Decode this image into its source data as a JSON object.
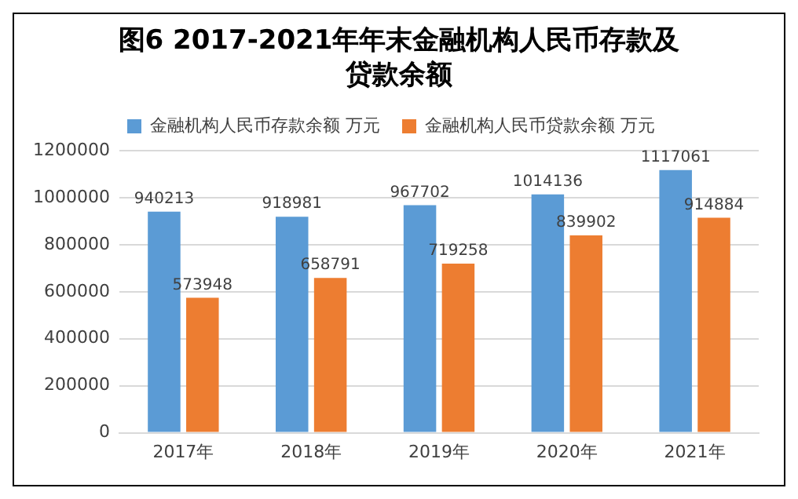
{
  "chart_data": {
    "type": "bar",
    "title": "图6  2017-2021年年末金融机构人民币存款及贷款余额",
    "categories": [
      "2017年",
      "2018年",
      "2019年",
      "2020年",
      "2021年"
    ],
    "series": [
      {
        "name": "金融机构人民币存款余额 万元",
        "color": "#5b9bd5",
        "values": [
          940213,
          918981,
          967702,
          1014136,
          1117061
        ]
      },
      {
        "name": "金融机构人民币贷款余额 万元",
        "color": "#ed7d31",
        "values": [
          573948,
          658791,
          719258,
          839902,
          914884
        ]
      }
    ],
    "ylim": [
      0,
      1200000
    ],
    "yticks": [
      0,
      200000,
      400000,
      600000,
      800000,
      1000000,
      1200000
    ],
    "grid": "y",
    "legend": "top",
    "data_labels": true
  }
}
